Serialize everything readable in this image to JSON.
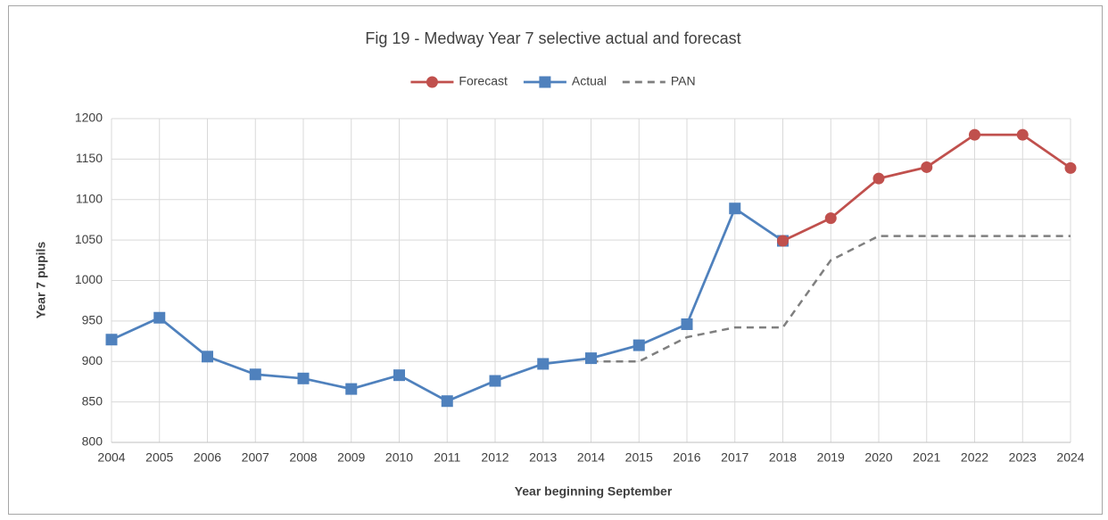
{
  "chart_data": {
    "type": "line",
    "title": "Fig 19 - Medway Year 7 selective actual and forecast",
    "x_label": "Year beginning September",
    "y_label": "Year 7 pupils",
    "categories": [
      "2004",
      "2005",
      "2006",
      "2007",
      "2008",
      "2009",
      "2010",
      "2011",
      "2012",
      "2013",
      "2014",
      "2015",
      "2016",
      "2017",
      "2018",
      "2019",
      "2020",
      "2021",
      "2022",
      "2023",
      "2024"
    ],
    "series": [
      {
        "name": "Forecast",
        "color": "#c0504d",
        "marker": "circle",
        "dashed": false,
        "values": [
          null,
          null,
          null,
          null,
          null,
          null,
          null,
          null,
          null,
          null,
          null,
          null,
          null,
          null,
          1049,
          1077,
          1126,
          1140,
          1180,
          1180,
          1139
        ]
      },
      {
        "name": "Actual",
        "color": "#4f81bd",
        "marker": "square",
        "dashed": false,
        "values": [
          927,
          954,
          906,
          884,
          879,
          866,
          883,
          851,
          876,
          897,
          904,
          920,
          946,
          1089,
          1049,
          null,
          null,
          null,
          null,
          null,
          null
        ]
      },
      {
        "name": "PAN",
        "color": "#7f7f7f",
        "marker": "none",
        "dashed": true,
        "values": [
          null,
          null,
          null,
          null,
          null,
          null,
          null,
          null,
          null,
          null,
          900,
          900,
          930,
          942,
          942,
          1025,
          1055,
          1055,
          1055,
          1055,
          1055
        ]
      }
    ],
    "ylim": [
      800,
      1200
    ],
    "yticks": [
      800,
      850,
      900,
      950,
      1000,
      1050,
      1100,
      1150,
      1200
    ],
    "grid": true
  }
}
